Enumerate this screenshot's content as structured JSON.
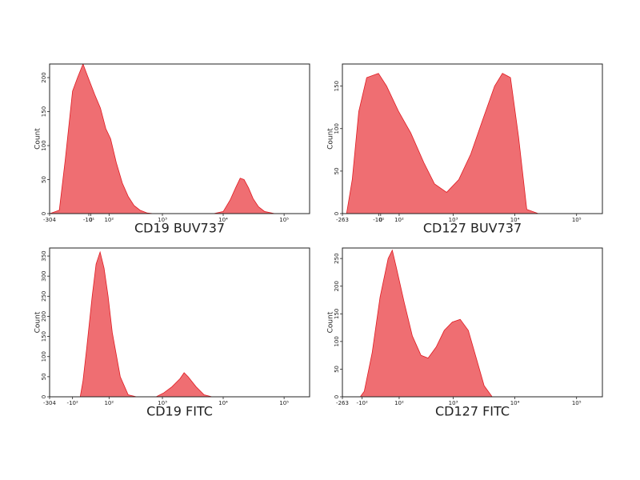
{
  "chart_data": [
    {
      "type": "area",
      "xscale": "biexponential",
      "xlabel": "CD19 BUV737",
      "ylabel": "Count",
      "color": "#ef6e72",
      "edge_color": "#e01b22",
      "xlim": [
        -304,
        262144
      ],
      "ylim": [
        0,
        220
      ],
      "xticks": [
        -304,
        {
          "value": -10,
          "label": "-10¹"
        },
        0,
        {
          "value": 100,
          "label": "10²"
        },
        {
          "value": 1000,
          "label": "10³"
        },
        {
          "value": 10000,
          "label": "10⁴"
        },
        {
          "value": 100000,
          "label": "10⁵"
        }
      ],
      "yticks": [
        0,
        50,
        100,
        150,
        200
      ],
      "x": [
        -300,
        -200,
        -150,
        -100,
        -70,
        -40,
        -20,
        0,
        20,
        50,
        80,
        110,
        150,
        200,
        260,
        330,
        420,
        550,
        700,
        1000,
        3000,
        7000,
        10000,
        13000,
        16000,
        19000,
        22000,
        26000,
        31000,
        38000,
        48000,
        70000,
        200000
      ],
      "values": [
        0,
        5,
        80,
        180,
        200,
        220,
        205,
        190,
        175,
        155,
        125,
        110,
        75,
        45,
        25,
        12,
        5,
        1,
        0,
        0,
        0,
        0,
        3,
        20,
        38,
        52,
        50,
        38,
        22,
        10,
        3,
        0,
        0
      ]
    },
    {
      "type": "area",
      "xscale": "biexponential",
      "xlabel": "CD127 BUV737",
      "ylabel": "Count",
      "color": "#ef6e72",
      "edge_color": "#e01b22",
      "xlim": [
        -263,
        262144
      ],
      "ylim": [
        0,
        176
      ],
      "xticks": [
        -263,
        {
          "value": -10,
          "label": "-10¹"
        },
        0,
        {
          "value": 100,
          "label": "10²"
        },
        {
          "value": 1000,
          "label": "10³"
        },
        {
          "value": 10000,
          "label": "10⁴"
        },
        {
          "value": 100000,
          "label": "10⁵"
        }
      ],
      "yticks": [
        0,
        50,
        100,
        150
      ],
      "x": [
        -263,
        -220,
        -170,
        -122,
        -73,
        -11,
        30,
        97,
        184,
        322,
        490,
        780,
        1230,
        1930,
        3000,
        4700,
        6300,
        8500,
        11500,
        15600,
        24000,
        200000
      ],
      "values": [
        0,
        0,
        40,
        120,
        160,
        165,
        150,
        120,
        95,
        60,
        35,
        25,
        40,
        70,
        110,
        150,
        165,
        160,
        90,
        5,
        0,
        0
      ]
    },
    {
      "type": "area",
      "xscale": "biexponential",
      "xlabel": "CD19 FITC",
      "ylabel": "Count",
      "color": "#ef6e72",
      "edge_color": "#e01b22",
      "xlim": [
        -304,
        262144
      ],
      "ylim": [
        0,
        370
      ],
      "xticks": [
        -304,
        {
          "value": -100,
          "label": "-10²"
        },
        {
          "value": 100,
          "label": "10²"
        },
        {
          "value": 1000,
          "label": "10³"
        },
        {
          "value": 10000,
          "label": "10⁴"
        },
        {
          "value": 100000,
          "label": "10⁵"
        }
      ],
      "yticks": [
        0,
        50,
        100,
        150,
        200,
        250,
        300,
        350
      ],
      "x": [
        -300,
        -55,
        -40,
        -21,
        7,
        27,
        48,
        70,
        94,
        121,
        182,
        259,
        364,
        787,
        1060,
        1440,
        1950,
        2280,
        2650,
        3580,
        4850,
        6540,
        200000
      ],
      "values": [
        0,
        0,
        40,
        120,
        250,
        330,
        360,
        320,
        250,
        160,
        50,
        5,
        0,
        0,
        10,
        25,
        45,
        60,
        50,
        25,
        5,
        0,
        0
      ]
    },
    {
      "type": "area",
      "xscale": "biexponential",
      "xlabel": "CD127 FITC",
      "ylabel": "Count",
      "color": "#ef6e72",
      "edge_color": "#e01b22",
      "xlim": [
        -263,
        262144
      ],
      "ylim": [
        0,
        269
      ],
      "xticks": [
        -263,
        {
          "value": -100,
          "label": "-10²"
        },
        {
          "value": 100,
          "label": "10²"
        },
        {
          "value": 1000,
          "label": "10³"
        },
        {
          "value": 10000,
          "label": "10⁴"
        },
        {
          "value": 100000,
          "label": "10⁵"
        }
      ],
      "yticks": [
        0,
        50,
        100,
        150,
        200,
        250
      ],
      "x": [
        -263,
        -112,
        -87,
        -43,
        -3,
        38,
        60,
        82,
        134,
        198,
        287,
        382,
        523,
        712,
        965,
        1300,
        1760,
        2370,
        3180,
        4290,
        200000
      ],
      "values": [
        0,
        0,
        10,
        80,
        180,
        250,
        265,
        235,
        170,
        110,
        75,
        70,
        90,
        120,
        135,
        140,
        120,
        70,
        20,
        0,
        0
      ]
    }
  ]
}
